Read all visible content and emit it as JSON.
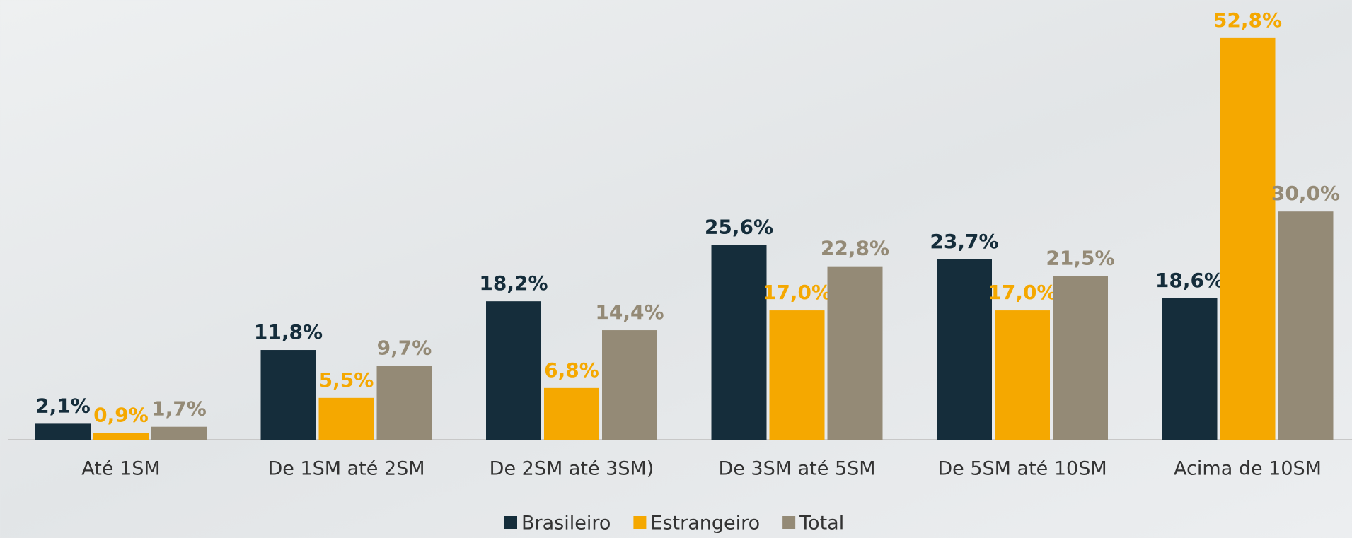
{
  "chart_data": {
    "type": "bar",
    "categories": [
      "Até 1SM",
      "De 1SM até 2SM",
      "De 2SM até 3SM)",
      "De 3SM até 5SM",
      "De 5SM até 10SM",
      "Acima de 10SM"
    ],
    "series": [
      {
        "name": "Brasileiro",
        "color": "#152d3b",
        "values": [
          2.1,
          11.8,
          18.2,
          25.6,
          23.7,
          18.6
        ],
        "value_labels": [
          "2,1%",
          "11,8%",
          "18,2%",
          "25,6%",
          "23,7%",
          "18,6%"
        ]
      },
      {
        "name": "Estrangeiro",
        "color": "#f5a800",
        "values": [
          0.9,
          5.5,
          6.8,
          17.0,
          17.0,
          52.8
        ],
        "value_labels": [
          "0,9%",
          "5,5%",
          "6,8%",
          "17,0%",
          "17,0%",
          "52,8%"
        ]
      },
      {
        "name": "Total",
        "color": "#948a76",
        "values": [
          1.7,
          9.7,
          14.4,
          22.8,
          21.5,
          30.0
        ],
        "value_labels": [
          "1,7%",
          "9,7%",
          "14,4%",
          "22,8%",
          "21,5%",
          "30,0%"
        ]
      }
    ]
  }
}
